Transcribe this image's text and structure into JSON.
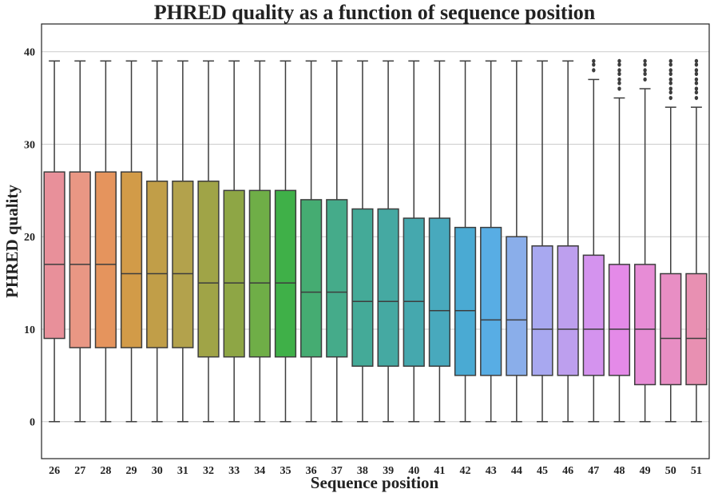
{
  "chart_data": {
    "type": "box",
    "title": "PHRED quality as a function of sequence position",
    "xlabel": "Sequence position",
    "ylabel": "PHRED quality",
    "ylim": [
      -4,
      43
    ],
    "yticks": [
      0,
      10,
      20,
      30,
      40
    ],
    "grid": "horizontal",
    "legend": "none",
    "categories": [
      "26",
      "27",
      "28",
      "29",
      "30",
      "31",
      "32",
      "33",
      "34",
      "35",
      "36",
      "37",
      "38",
      "39",
      "40",
      "41",
      "42",
      "43",
      "44",
      "45",
      "46",
      "47",
      "48",
      "49",
      "50",
      "51"
    ],
    "boxes": [
      {
        "whislo": 0,
        "q1": 9,
        "median": 17,
        "q3": 27,
        "whishi": 39,
        "fliers": [],
        "color": "#e8909a"
      },
      {
        "whislo": 0,
        "q1": 8,
        "median": 17,
        "q3": 27,
        "whishi": 39,
        "fliers": [],
        "color": "#e99784"
      },
      {
        "whislo": 0,
        "q1": 8,
        "median": 17,
        "q3": 27,
        "whishi": 39,
        "fliers": [],
        "color": "#e5945d"
      },
      {
        "whislo": 0,
        "q1": 8,
        "median": 16,
        "q3": 27,
        "whishi": 39,
        "fliers": [],
        "color": "#d29b48"
      },
      {
        "whislo": 0,
        "q1": 8,
        "median": 16,
        "q3": 26,
        "whishi": 39,
        "fliers": [],
        "color": "#c19e48"
      },
      {
        "whislo": 0,
        "q1": 8,
        "median": 16,
        "q3": 26,
        "whishi": 39,
        "fliers": [],
        "color": "#b3a24c"
      },
      {
        "whislo": 0,
        "q1": 7,
        "median": 15,
        "q3": 26,
        "whishi": 39,
        "fliers": [],
        "color": "#a0a447"
      },
      {
        "whislo": 0,
        "q1": 7,
        "median": 15,
        "q3": 25,
        "whishi": 39,
        "fliers": [],
        "color": "#8ea645"
      },
      {
        "whislo": 0,
        "q1": 7,
        "median": 15,
        "q3": 25,
        "whishi": 39,
        "fliers": [],
        "color": "#6fae47"
      },
      {
        "whislo": 0,
        "q1": 7,
        "median": 15,
        "q3": 25,
        "whishi": 39,
        "fliers": [],
        "color": "#3fb048"
      },
      {
        "whislo": 0,
        "q1": 7,
        "median": 14,
        "q3": 24,
        "whishi": 39,
        "fliers": [],
        "color": "#45ac72"
      },
      {
        "whislo": 0,
        "q1": 7,
        "median": 14,
        "q3": 24,
        "whishi": 39,
        "fliers": [],
        "color": "#45ab8a"
      },
      {
        "whislo": 0,
        "q1": 6,
        "median": 13,
        "q3": 23,
        "whishi": 39,
        "fliers": [],
        "color": "#44aa98"
      },
      {
        "whislo": 0,
        "q1": 6,
        "median": 13,
        "q3": 23,
        "whishi": 39,
        "fliers": [],
        "color": "#45a9a2"
      },
      {
        "whislo": 0,
        "q1": 6,
        "median": 13,
        "q3": 22,
        "whishi": 39,
        "fliers": [],
        "color": "#45a8ae"
      },
      {
        "whislo": 0,
        "q1": 6,
        "median": 12,
        "q3": 22,
        "whishi": 39,
        "fliers": [],
        "color": "#48a9bd"
      },
      {
        "whislo": 0,
        "q1": 5,
        "median": 12,
        "q3": 21,
        "whishi": 39,
        "fliers": [],
        "color": "#4aaad3"
      },
      {
        "whislo": 0,
        "q1": 5,
        "median": 11,
        "q3": 21,
        "whishi": 39,
        "fliers": [],
        "color": "#58ade4"
      },
      {
        "whislo": 0,
        "q1": 5,
        "median": 11,
        "q3": 20,
        "whishi": 39,
        "fliers": [],
        "color": "#8aaeea"
      },
      {
        "whislo": 0,
        "q1": 5,
        "median": 10,
        "q3": 19,
        "whishi": 39,
        "fliers": [],
        "color": "#a8a8f0"
      },
      {
        "whislo": 0,
        "q1": 5,
        "median": 10,
        "q3": 19,
        "whishi": 39,
        "fliers": [],
        "color": "#bd9fee"
      },
      {
        "whislo": 0,
        "q1": 5,
        "median": 10,
        "q3": 18,
        "whishi": 37,
        "fliers": [
          38,
          38.6,
          39
        ],
        "color": "#d493ee"
      },
      {
        "whislo": 0,
        "q1": 5,
        "median": 10,
        "q3": 17,
        "whishi": 35,
        "fliers": [
          36,
          36.6,
          37,
          37.6,
          38,
          38.6,
          39
        ],
        "color": "#e48ae8"
      },
      {
        "whislo": 0,
        "q1": 4,
        "median": 10,
        "q3": 17,
        "whishi": 36,
        "fliers": [
          37,
          37.6,
          38,
          38.6,
          39
        ],
        "color": "#e78cd6"
      },
      {
        "whislo": 0,
        "q1": 4,
        "median": 9,
        "q3": 16,
        "whishi": 34,
        "fliers": [
          35,
          35.6,
          36,
          36.6,
          37,
          37.6,
          38,
          38.6,
          39
        ],
        "color": "#e88ec4"
      },
      {
        "whislo": 0,
        "q1": 4,
        "median": 9,
        "q3": 16,
        "whishi": 34,
        "fliers": [
          35,
          35.6,
          36,
          36.6,
          37,
          37.6,
          38,
          38.6,
          39
        ],
        "color": "#e890b2"
      }
    ],
    "line_color": "#3d3d3d"
  }
}
